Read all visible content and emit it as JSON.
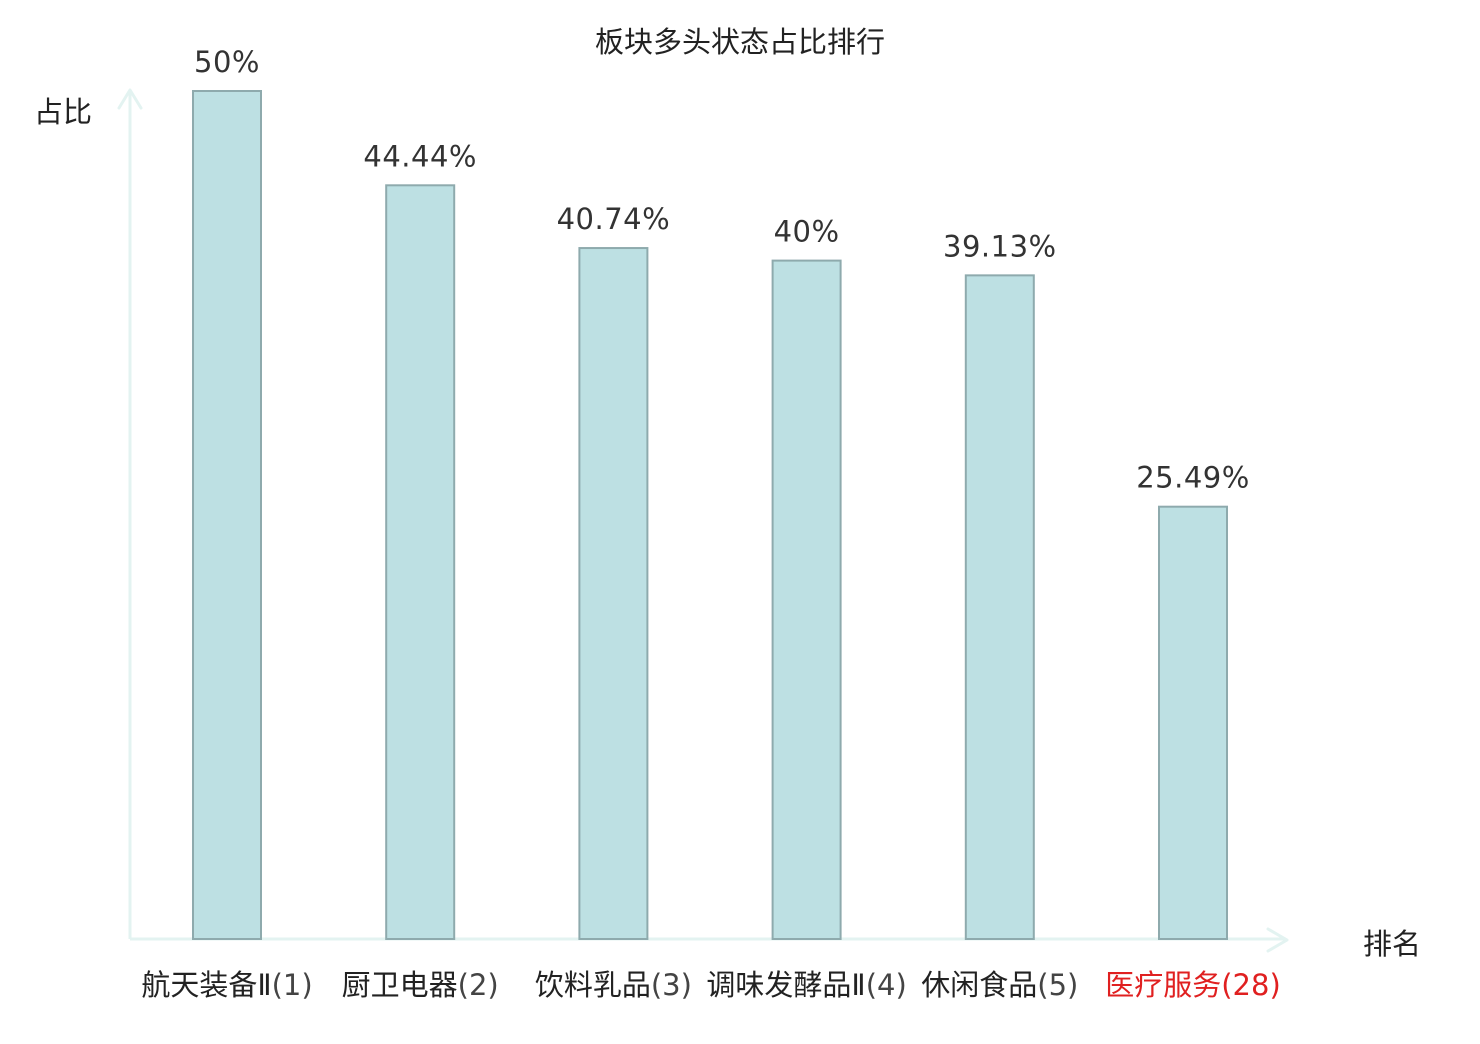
{
  "chart_data": {
    "type": "bar",
    "title": "板块多头状态占比排行",
    "ylabel": "占比",
    "xlabel": "排名",
    "ylim": [
      0,
      50
    ],
    "grid": false,
    "categories": [
      {
        "name": "航天装备Ⅱ",
        "rank": "(1)",
        "highlight": false
      },
      {
        "name": "厨卫电器",
        "rank": "(2)",
        "highlight": false
      },
      {
        "name": "饮料乳品",
        "rank": "(3)",
        "highlight": false
      },
      {
        "name": "调味发酵品Ⅱ",
        "rank": "(4)",
        "highlight": false
      },
      {
        "name": "休闲食品",
        "rank": "(5)",
        "highlight": false
      },
      {
        "name": "医疗服务",
        "rank": "(28)",
        "highlight": true
      }
    ],
    "values": [
      50,
      44.44,
      40.74,
      40,
      39.13,
      25.49
    ],
    "value_labels": [
      "50%",
      "44.44%",
      "40.74%",
      "40%",
      "39.13%",
      "25.49%"
    ],
    "colors": {
      "bar_fill": "#bde0e3",
      "bar_stroke": "#8eaaad",
      "axis": "#e3f3f1",
      "text": "#333333",
      "highlight": "#e02020"
    }
  }
}
